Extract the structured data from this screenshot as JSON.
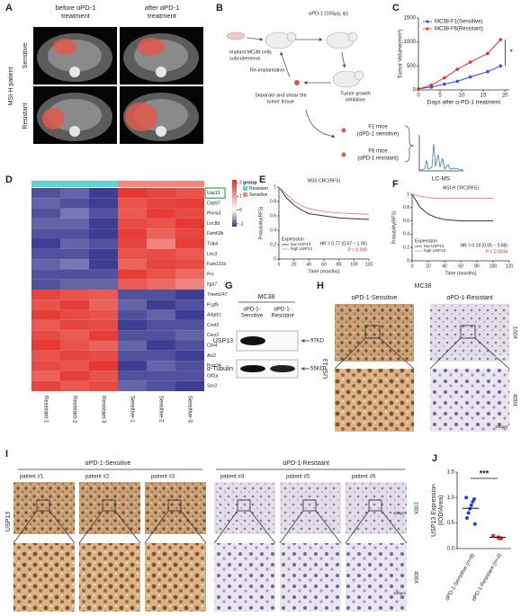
{
  "panels": {
    "A": {
      "label": "A",
      "before": [
        "before αPD-1",
        "treatment"
      ],
      "after": [
        "after αPD-1",
        "treatment"
      ],
      "patient": "MSI-H patient",
      "sensitive": "Sensitive",
      "resistant": "Resistant"
    },
    "B": {
      "label": "B",
      "implant": [
        "Implant MC38 cells",
        "subcuteneous"
      ],
      "treat": "αPD-1  (100μg, ip)",
      "reimplant": "Re-implantation",
      "separate": [
        "Separate and shear the",
        "tumor tissue"
      ],
      "inhibition": [
        "Tumor growth",
        "inhibition"
      ],
      "f1": [
        "F1 mice",
        "(αPD-1 sensitive)"
      ],
      "f6": [
        "F6 mice",
        "(αPD-1 resistant)"
      ],
      "lcms": "LC-MS"
    },
    "C": {
      "label": "C"
    },
    "D": {
      "label": "D"
    },
    "E": {
      "label": "E"
    },
    "F": {
      "label": "F"
    },
    "G": {
      "label": "G",
      "cell": "MC38",
      "lanes": [
        [
          "αPD-1-",
          "Sensitive"
        ],
        [
          "αPD-1-",
          "Resistant"
        ]
      ],
      "usp13": "USP13",
      "tubulin": "α-Tubulin",
      "kd1": "97KD",
      "kd2": "55KD"
    },
    "H": {
      "label": "H",
      "cell": "MC38",
      "cols": [
        "αPD-1-Sensitive",
        "αPD-1-Resistant"
      ],
      "stain": "USP13",
      "mag": [
        "100X",
        "400X"
      ],
      "scale": [
        "400μm",
        "100μm"
      ]
    },
    "I": {
      "label": "I",
      "groups": [
        "αPD-1-Sensitive",
        "αPD-1-Resistant"
      ],
      "patients": [
        "patient #1",
        "patient #2",
        "patient #3",
        "patient #4",
        "patient #5",
        "patient #6"
      ],
      "stain": "USP13",
      "mag": [
        "100X",
        "400X"
      ],
      "scale": [
        "400μm",
        "100μm"
      ]
    },
    "J": {
      "label": "J"
    }
  },
  "chart_data": [
    {
      "type": "line",
      "x": [
        0,
        3,
        6,
        9,
        12,
        16,
        19
      ],
      "xlim": [
        0,
        21
      ],
      "xticks": [
        0,
        5,
        10,
        15,
        20
      ],
      "ylim": [
        0,
        1500
      ],
      "yticks": [
        0,
        500,
        1000,
        1500
      ],
      "xlabel": "Days after α-PD-1 treatment",
      "ylabel": "Tumor Volume(mm³)",
      "legend": "upper left",
      "markers": true,
      "annotation": "*",
      "series": [
        {
          "name": "MC38-F1(Sensitive)",
          "color": "#3a4fe0",
          "values": [
            20,
            60,
            120,
            180,
            270,
            380,
            500
          ]
        },
        {
          "name": "MC38-F6(Resistant)",
          "color": "#e8302a",
          "values": [
            20,
            100,
            250,
            430,
            580,
            760,
            1050
          ]
        }
      ]
    },
    {
      "type": "heatmap",
      "columns": [
        "Resistant-1",
        "Resistant-2",
        "Resistant-3",
        "Sensitive-1",
        "Sensitive-2",
        "Sensitive-3"
      ],
      "rows": [
        "Usp13",
        "Cep97",
        "Plxna3",
        "Lrrc8d",
        "Fam63b",
        "Tulp4",
        "Lrrc3",
        "Fam131b",
        "Prx",
        "Itga7",
        "Tmem247",
        "Pcgf5",
        "Adgrb1",
        "Cnot2",
        "Cecr2",
        "Cbx4",
        "Alx3",
        "Prss34",
        "Gtf2a",
        "Sox2"
      ],
      "values": [
        [
          -0.9,
          -0.8,
          -1.0,
          1.6,
          1.4,
          1.2
        ],
        [
          -0.8,
          -0.9,
          -1.0,
          1.2,
          1.4,
          1.5
        ],
        [
          -0.9,
          -0.7,
          -0.9,
          1.1,
          1.5,
          1.3
        ],
        [
          -0.8,
          -0.8,
          -1.0,
          1.3,
          1.2,
          1.6
        ],
        [
          -0.9,
          -0.9,
          -1.0,
          1.5,
          1.0,
          1.4
        ],
        [
          -1.0,
          -0.8,
          -0.9,
          1.4,
          0.6,
          1.5
        ],
        [
          -0.9,
          -0.9,
          -1.0,
          1.2,
          1.3,
          1.1
        ],
        [
          -0.8,
          -0.7,
          -1.0,
          1.0,
          1.4,
          1.3
        ],
        [
          -0.9,
          -0.9,
          -0.9,
          1.5,
          1.2,
          0.9
        ],
        [
          -0.9,
          -0.8,
          -0.8,
          1.1,
          0.9,
          0.6
        ],
        [
          1.4,
          1.2,
          1.1,
          -0.9,
          -0.9,
          -1.0
        ],
        [
          1.2,
          1.5,
          1.0,
          -0.8,
          -1.0,
          -0.9
        ],
        [
          1.5,
          1.3,
          1.2,
          -0.9,
          -0.8,
          -1.0
        ],
        [
          1.1,
          1.4,
          1.3,
          -1.0,
          -0.9,
          -0.9
        ],
        [
          1.3,
          1.1,
          1.5,
          -0.9,
          -0.9,
          -0.8
        ],
        [
          1.6,
          1.2,
          1.0,
          -0.8,
          -1.0,
          -0.9
        ],
        [
          1.2,
          1.4,
          1.3,
          -0.9,
          -0.9,
          -1.0
        ],
        [
          1.3,
          1.2,
          1.6,
          -1.0,
          -0.8,
          -0.9
        ],
        [
          1.0,
          1.5,
          1.2,
          -0.9,
          -0.9,
          -0.9
        ],
        [
          1.4,
          1.1,
          1.3,
          -0.8,
          -0.9,
          -1.0
        ]
      ],
      "clim": [
        -1.2,
        2.2
      ],
      "cticks": [
        2,
        1,
        0,
        -1
      ],
      "colors": [
        "#35358f",
        "#ffffff",
        "#e32b22"
      ],
      "legend_title": "group",
      "group_names": [
        "Resistant",
        "Sensitive"
      ],
      "group_colors": [
        "#5fd3d3",
        "#f2877c"
      ],
      "column_groups": [
        0,
        0,
        0,
        1,
        1,
        1
      ]
    },
    {
      "type": "line",
      "title": "MSS CRC(RFS)",
      "xlabel": "Time (months)",
      "ylabel": "Probability(RFS)",
      "xlim": [
        0,
        120
      ],
      "xticks": [
        0,
        20,
        40,
        60,
        80,
        100,
        120
      ],
      "ylim": [
        0,
        1
      ],
      "yticks": [
        0,
        0.2,
        0.4,
        0.6,
        0.8,
        1
      ],
      "legend_title": "Expression",
      "legend": "lower left",
      "hr": "HR = 0.77 (0.57 − 1.05)",
      "p": "P = 0.098",
      "p_color": "#e8302a",
      "series": [
        {
          "name": "low USP13",
          "color": "#333333",
          "x": [
            0,
            10,
            20,
            30,
            40,
            60,
            80,
            100,
            120
          ],
          "values": [
            1,
            0.85,
            0.75,
            0.68,
            0.63,
            0.6,
            0.57,
            0.56,
            0.55
          ]
        },
        {
          "name": "high USP13",
          "color": "#f08a9a",
          "x": [
            0,
            10,
            20,
            30,
            40,
            60,
            80,
            100,
            120
          ],
          "values": [
            1,
            0.9,
            0.8,
            0.74,
            0.7,
            0.66,
            0.64,
            0.63,
            0.62
          ]
        }
      ]
    },
    {
      "type": "line",
      "title": "MSI-H CRC(RFS)",
      "xlabel": "Time (months)",
      "ylabel": "Probability(RFS)",
      "xlim": [
        0,
        120
      ],
      "xticks": [
        0,
        20,
        40,
        60,
        80,
        100,
        120
      ],
      "ylim": [
        0,
        1
      ],
      "yticks": [
        0,
        0.2,
        0.4,
        0.6,
        0.8,
        1
      ],
      "legend_title": "Expression",
      "legend": "lower left",
      "hr": "HR = 0.19 (0.05 − 0.68)",
      "p": "P = 0.0044",
      "p_color": "#e8302a",
      "series": [
        {
          "name": "low USP13",
          "color": "#333333",
          "x": [
            0,
            10,
            20,
            30,
            40,
            60,
            100
          ],
          "values": [
            1,
            0.8,
            0.7,
            0.65,
            0.62,
            0.6,
            0.6
          ]
        },
        {
          "name": "high USP13",
          "color": "#f08a9a",
          "x": [
            0,
            10,
            20,
            30,
            40,
            60,
            100
          ],
          "values": [
            1,
            0.97,
            0.95,
            0.94,
            0.94,
            0.94,
            0.94
          ]
        }
      ]
    },
    {
      "type": "strip",
      "ylabel": [
        "USP13 Expression",
        "(IOD/Area)"
      ],
      "ylim": [
        0,
        1.5
      ],
      "yticks": [
        {
          "value": 0,
          "label": "0.0"
        },
        0.5,
        {
          "value": 1,
          "label": "1.0"
        },
        1.5
      ],
      "annotation": "***",
      "series": [
        {
          "name": "αPD-1-Sensitive (n=8)",
          "color": "#2540d9",
          "marker": "circle",
          "values": [
            1.0,
            0.97,
            0.92,
            0.85,
            0.78,
            0.7,
            0.6,
            0.48
          ],
          "mean": 0.79
        },
        {
          "name": "αPD-1-Resistant (n=4)",
          "color": "#e0302a",
          "marker": "square",
          "values": [
            0.25,
            0.2,
            0.2,
            0.22
          ],
          "mean": 0.22
        }
      ]
    }
  ]
}
